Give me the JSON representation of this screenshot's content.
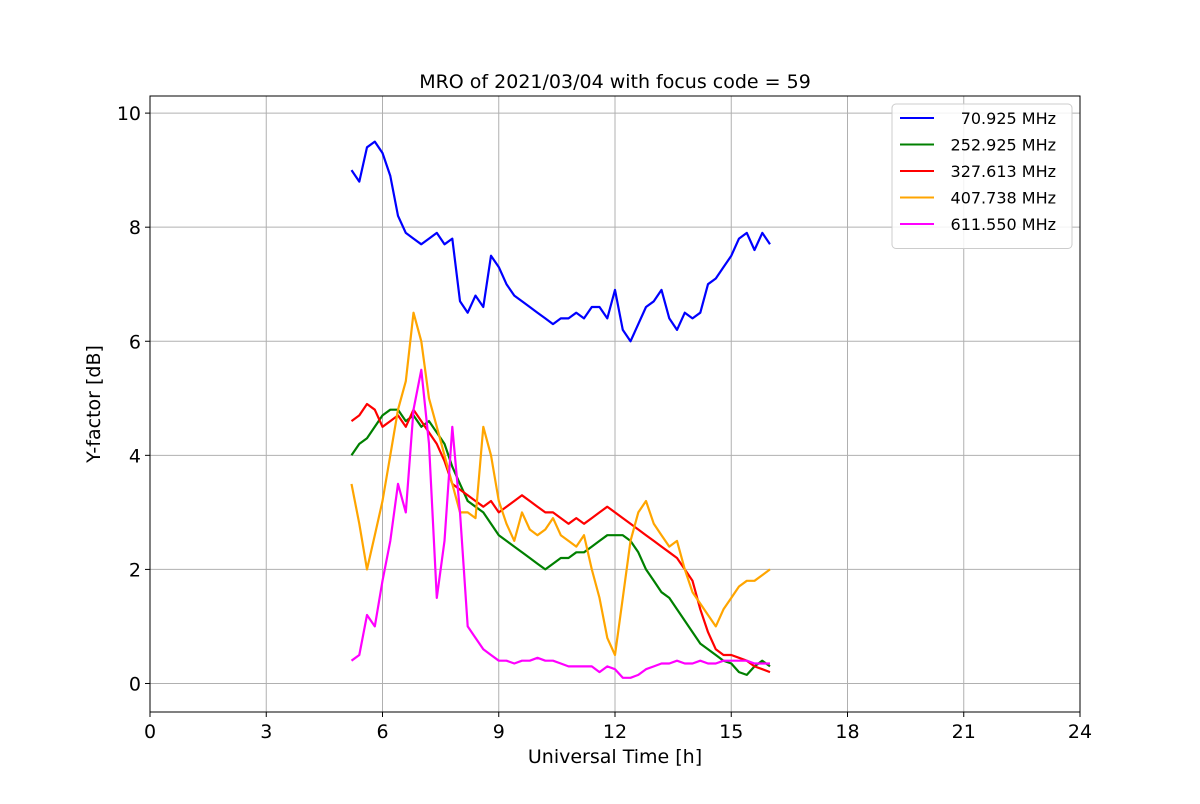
{
  "chart_data": {
    "type": "line",
    "title": "MRO of 2021/03/04 with focus code = 59",
    "xlabel": "Universal Time [h]",
    "ylabel": "Y-factor [dB]",
    "xlim": [
      0,
      24
    ],
    "ylim": [
      -0.5,
      10.3
    ],
    "xticks": [
      0,
      3,
      6,
      9,
      12,
      15,
      18,
      21,
      24
    ],
    "yticks": [
      0,
      2,
      4,
      6,
      8,
      10
    ],
    "grid": true,
    "legend_position": "top-right",
    "series": [
      {
        "name": "70.925 MHz",
        "color": "#0000ff",
        "x": [
          5.2,
          5.4,
          5.6,
          5.8,
          6.0,
          6.2,
          6.4,
          6.6,
          6.8,
          7.0,
          7.2,
          7.4,
          7.6,
          7.8,
          8.0,
          8.2,
          8.4,
          8.6,
          8.8,
          9.0,
          9.2,
          9.4,
          9.6,
          9.8,
          10.0,
          10.2,
          10.4,
          10.6,
          10.8,
          11.0,
          11.2,
          11.4,
          11.6,
          11.8,
          12.0,
          12.2,
          12.4,
          12.6,
          12.8,
          13.0,
          13.2,
          13.4,
          13.6,
          13.8,
          14.0,
          14.2,
          14.4,
          14.6,
          14.8,
          15.0,
          15.2,
          15.4,
          15.6,
          15.8,
          16.0
        ],
        "y": [
          9.0,
          8.8,
          9.4,
          9.5,
          9.3,
          8.9,
          8.2,
          7.9,
          7.8,
          7.7,
          7.8,
          7.9,
          7.7,
          7.8,
          6.7,
          6.5,
          6.8,
          6.6,
          7.5,
          7.3,
          7.0,
          6.8,
          6.7,
          6.6,
          6.5,
          6.4,
          6.3,
          6.4,
          6.4,
          6.5,
          6.4,
          6.6,
          6.6,
          6.4,
          6.9,
          6.2,
          6.0,
          6.3,
          6.6,
          6.7,
          6.9,
          6.4,
          6.2,
          6.5,
          6.4,
          6.5,
          7.0,
          7.1,
          7.3,
          7.5,
          7.8,
          7.9,
          7.6,
          7.9,
          7.7
        ]
      },
      {
        "name": "252.925 MHz",
        "color": "#008000",
        "x": [
          5.2,
          5.4,
          5.6,
          5.8,
          6.0,
          6.2,
          6.4,
          6.6,
          6.8,
          7.0,
          7.2,
          7.4,
          7.6,
          7.8,
          8.0,
          8.2,
          8.4,
          8.6,
          8.8,
          9.0,
          9.2,
          9.4,
          9.6,
          9.8,
          10.0,
          10.2,
          10.4,
          10.6,
          10.8,
          11.0,
          11.2,
          11.4,
          11.6,
          11.8,
          12.0,
          12.2,
          12.4,
          12.6,
          12.8,
          13.0,
          13.2,
          13.4,
          13.6,
          13.8,
          14.0,
          14.2,
          14.4,
          14.6,
          14.8,
          15.0,
          15.2,
          15.4,
          15.6,
          15.8,
          16.0
        ],
        "y": [
          4.0,
          4.2,
          4.3,
          4.5,
          4.7,
          4.8,
          4.8,
          4.6,
          4.7,
          4.5,
          4.6,
          4.4,
          4.2,
          3.8,
          3.5,
          3.2,
          3.1,
          3.0,
          2.8,
          2.6,
          2.5,
          2.4,
          2.3,
          2.2,
          2.1,
          2.0,
          2.1,
          2.2,
          2.2,
          2.3,
          2.3,
          2.4,
          2.5,
          2.6,
          2.6,
          2.6,
          2.5,
          2.3,
          2.0,
          1.8,
          1.6,
          1.5,
          1.3,
          1.1,
          0.9,
          0.7,
          0.6,
          0.5,
          0.4,
          0.35,
          0.2,
          0.15,
          0.3,
          0.4,
          0.3
        ]
      },
      {
        "name": "327.613 MHz",
        "color": "#ff0000",
        "x": [
          5.2,
          5.4,
          5.6,
          5.8,
          6.0,
          6.2,
          6.4,
          6.6,
          6.8,
          7.0,
          7.2,
          7.4,
          7.6,
          7.8,
          8.0,
          8.2,
          8.4,
          8.6,
          8.8,
          9.0,
          9.2,
          9.4,
          9.6,
          9.8,
          10.0,
          10.2,
          10.4,
          10.6,
          10.8,
          11.0,
          11.2,
          11.4,
          11.6,
          11.8,
          12.0,
          12.2,
          12.4,
          12.6,
          12.8,
          13.0,
          13.2,
          13.4,
          13.6,
          13.8,
          14.0,
          14.2,
          14.4,
          14.6,
          14.8,
          15.0,
          15.2,
          15.4,
          15.6,
          15.8,
          16.0
        ],
        "y": [
          4.6,
          4.7,
          4.9,
          4.8,
          4.5,
          4.6,
          4.7,
          4.5,
          4.8,
          4.6,
          4.4,
          4.2,
          3.9,
          3.5,
          3.4,
          3.3,
          3.2,
          3.1,
          3.2,
          3.0,
          3.1,
          3.2,
          3.3,
          3.2,
          3.1,
          3.0,
          3.0,
          2.9,
          2.8,
          2.9,
          2.8,
          2.9,
          3.0,
          3.1,
          3.0,
          2.9,
          2.8,
          2.7,
          2.6,
          2.5,
          2.4,
          2.3,
          2.2,
          2.0,
          1.8,
          1.3,
          0.9,
          0.6,
          0.5,
          0.5,
          0.45,
          0.4,
          0.3,
          0.25,
          0.2
        ]
      },
      {
        "name": "407.738 MHz",
        "color": "#ffa500",
        "x": [
          5.2,
          5.4,
          5.6,
          5.8,
          6.0,
          6.2,
          6.4,
          6.6,
          6.8,
          7.0,
          7.2,
          7.4,
          7.6,
          7.8,
          8.0,
          8.2,
          8.4,
          8.6,
          8.8,
          9.0,
          9.2,
          9.4,
          9.6,
          9.8,
          10.0,
          10.2,
          10.4,
          10.6,
          10.8,
          11.0,
          11.2,
          11.4,
          11.6,
          11.8,
          12.0,
          12.2,
          12.4,
          12.6,
          12.8,
          13.0,
          13.2,
          13.4,
          13.6,
          13.8,
          14.0,
          14.2,
          14.4,
          14.6,
          14.8,
          15.0,
          15.2,
          15.4,
          15.6,
          15.8,
          16.0
        ],
        "y": [
          3.5,
          2.8,
          2.0,
          2.6,
          3.2,
          4.0,
          4.8,
          5.3,
          6.5,
          6.0,
          5.0,
          4.5,
          4.0,
          3.5,
          3.0,
          3.0,
          2.9,
          4.5,
          4.0,
          3.2,
          2.8,
          2.5,
          3.0,
          2.7,
          2.6,
          2.7,
          2.9,
          2.6,
          2.5,
          2.4,
          2.6,
          2.0,
          1.5,
          0.8,
          0.5,
          1.5,
          2.5,
          3.0,
          3.2,
          2.8,
          2.6,
          2.4,
          2.5,
          2.0,
          1.6,
          1.4,
          1.2,
          1.0,
          1.3,
          1.5,
          1.7,
          1.8,
          1.8,
          1.9,
          2.0
        ]
      },
      {
        "name": "611.550 MHz",
        "color": "#ff00ff",
        "x": [
          5.2,
          5.4,
          5.6,
          5.8,
          6.0,
          6.2,
          6.4,
          6.6,
          6.8,
          7.0,
          7.2,
          7.4,
          7.6,
          7.8,
          8.0,
          8.2,
          8.4,
          8.6,
          8.8,
          9.0,
          9.2,
          9.4,
          9.6,
          9.8,
          10.0,
          10.2,
          10.4,
          10.6,
          10.8,
          11.0,
          11.2,
          11.4,
          11.6,
          11.8,
          12.0,
          12.2,
          12.4,
          12.6,
          12.8,
          13.0,
          13.2,
          13.4,
          13.6,
          13.8,
          14.0,
          14.2,
          14.4,
          14.6,
          14.8,
          15.0,
          15.2,
          15.4,
          15.6,
          15.8,
          16.0
        ],
        "y": [
          0.4,
          0.5,
          1.2,
          1.0,
          1.8,
          2.5,
          3.5,
          3.0,
          4.8,
          5.5,
          4.2,
          1.5,
          2.5,
          4.5,
          3.0,
          1.0,
          0.8,
          0.6,
          0.5,
          0.4,
          0.4,
          0.35,
          0.4,
          0.4,
          0.45,
          0.4,
          0.4,
          0.35,
          0.3,
          0.3,
          0.3,
          0.3,
          0.2,
          0.3,
          0.25,
          0.1,
          0.1,
          0.15,
          0.25,
          0.3,
          0.35,
          0.35,
          0.4,
          0.35,
          0.35,
          0.4,
          0.35,
          0.35,
          0.4,
          0.4,
          0.4,
          0.4,
          0.35,
          0.35,
          0.35
        ]
      }
    ]
  }
}
